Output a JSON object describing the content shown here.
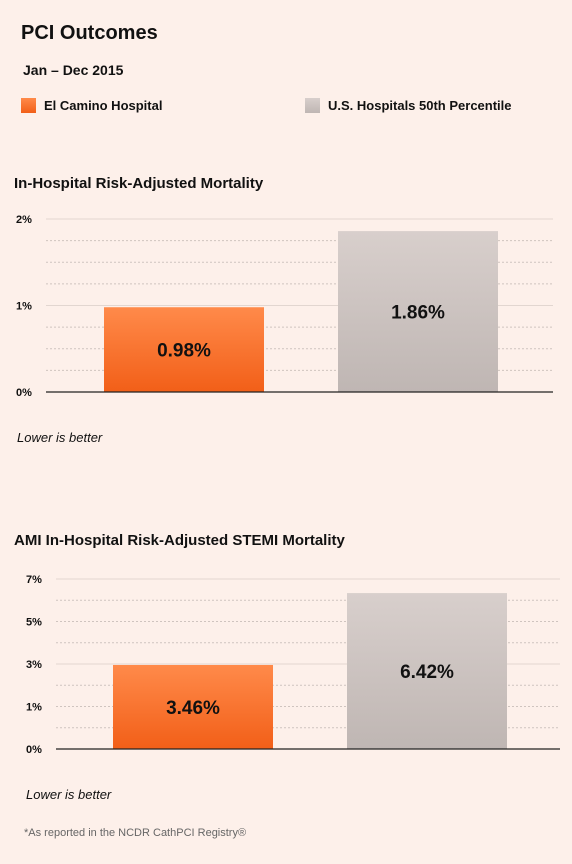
{
  "header": {
    "title": "PCI Outcomes",
    "subtitle": "Jan – Dec 2015"
  },
  "legend": [
    {
      "label": "El Camino Hospital",
      "color": "#f26a21"
    },
    {
      "label": "U.S. Hospitals 50th Percentile",
      "color": "#c7bebb"
    }
  ],
  "colors": {
    "hospital_top": "#ff8a4a",
    "hospital_bottom": "#f25f18",
    "us_top": "#d8cfcc",
    "us_bottom": "#bfb6b3",
    "background": "#fdf0ea"
  },
  "chart_data": [
    {
      "type": "bar",
      "title": "In-Hospital Risk-Adjusted Mortality",
      "categories": [
        "El Camino Hospital",
        "U.S. Hospitals 50th Percentile"
      ],
      "values": [
        0.98,
        1.86
      ],
      "data_labels": [
        "0.98%",
        "1.86%"
      ],
      "ylim": [
        0,
        2
      ],
      "ytick_labels": [
        "2%",
        "1%",
        "0%"
      ],
      "note": "Lower is better"
    },
    {
      "type": "bar",
      "title": "AMI In-Hospital Risk-Adjusted STEMI Mortality",
      "categories": [
        "El Camino Hospital",
        "U.S. Hospitals 50th Percentile"
      ],
      "values": [
        3.46,
        6.42
      ],
      "data_labels": [
        "3.46%",
        "6.42%"
      ],
      "ylim": [
        0,
        7
      ],
      "ytick_labels": [
        "7%",
        "5%",
        "3%",
        "1%",
        "0%"
      ],
      "note": "Lower is better"
    }
  ],
  "footnote": "*As reported in the NCDR CathPCI Registry®"
}
